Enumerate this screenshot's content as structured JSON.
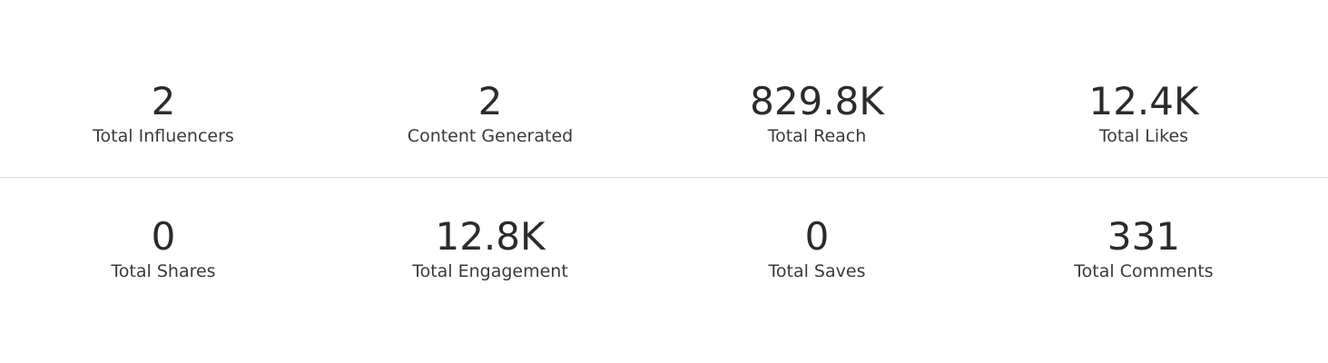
{
  "stats": {
    "rows": [
      [
        {
          "value": "2",
          "label": "Total Influencers"
        },
        {
          "value": "2",
          "label": "Content Generated"
        },
        {
          "value": "829.8K",
          "label": "Total Reach"
        },
        {
          "value": "12.4K",
          "label": "Total Likes"
        }
      ],
      [
        {
          "value": "0",
          "label": "Total Shares"
        },
        {
          "value": "12.8K",
          "label": "Total Engagement"
        },
        {
          "value": "0",
          "label": "Total Saves"
        },
        {
          "value": "331",
          "label": "Total Comments"
        }
      ]
    ]
  }
}
